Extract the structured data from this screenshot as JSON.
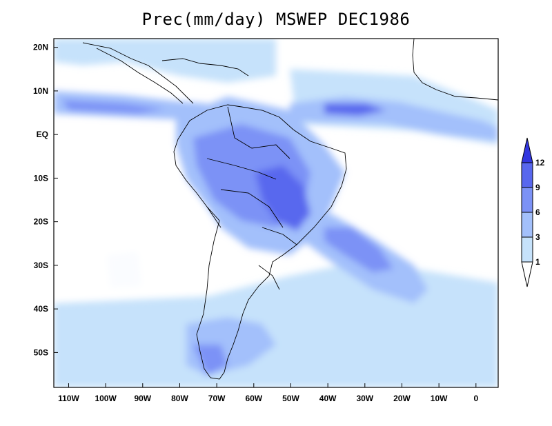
{
  "title": "Prec(mm/day) MSWEP DEC1986",
  "map": {
    "lon_range": [
      -114,
      6
    ],
    "lat_range": [
      -58,
      22
    ],
    "lon_ticks": [
      {
        "value": -110,
        "label": "110W"
      },
      {
        "value": -100,
        "label": "100W"
      },
      {
        "value": -90,
        "label": "90W"
      },
      {
        "value": -80,
        "label": "80W"
      },
      {
        "value": -70,
        "label": "70W"
      },
      {
        "value": -60,
        "label": "60W"
      },
      {
        "value": -50,
        "label": "50W"
      },
      {
        "value": -40,
        "label": "40W"
      },
      {
        "value": -30,
        "label": "30W"
      },
      {
        "value": -20,
        "label": "20W"
      },
      {
        "value": -10,
        "label": "10W"
      },
      {
        "value": 0,
        "label": "0"
      }
    ],
    "lat_ticks": [
      {
        "value": 20,
        "label": "20N"
      },
      {
        "value": 10,
        "label": "10N"
      },
      {
        "value": 0,
        "label": "EQ"
      },
      {
        "value": -10,
        "label": "10S"
      },
      {
        "value": -20,
        "label": "20S"
      },
      {
        "value": -30,
        "label": "30S"
      },
      {
        "value": -40,
        "label": "40S"
      },
      {
        "value": -50,
        "label": "50S"
      }
    ]
  },
  "colorbar": {
    "levels": [
      "1",
      "3",
      "6",
      "9",
      "12"
    ],
    "colors": [
      "#ffffff",
      "#c6e2fb",
      "#a3c0fb",
      "#7c92f6",
      "#5867ee",
      "#3236e0"
    ]
  }
}
